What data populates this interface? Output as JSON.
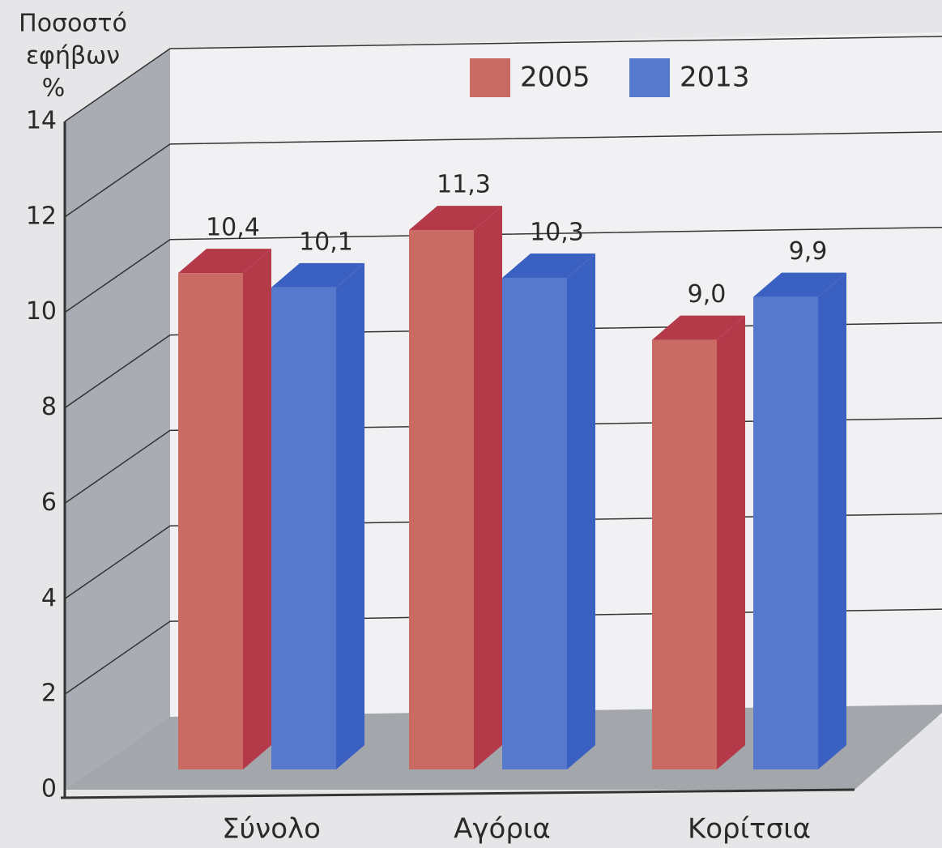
{
  "chart_data": {
    "type": "bar3d",
    "y_label_lines": [
      "Ποσοστό",
      "εφήβων",
      "%"
    ],
    "categories": [
      "Σύνολο",
      "Αγόρια",
      "Κορίτσια"
    ],
    "series": [
      {
        "name": "2005",
        "color": "#c96a63",
        "side_color": "#b43a4a",
        "values": [
          10.4,
          11.3,
          9.0
        ],
        "value_labels": [
          "10,4",
          "11,3",
          "9,0"
        ]
      },
      {
        "name": "2013",
        "color": "#5679cc",
        "side_color": "#3a60c2",
        "values": [
          10.1,
          10.3,
          9.9
        ],
        "value_labels": [
          "10,1",
          "10,3",
          "9,9"
        ]
      }
    ],
    "ylim": [
      0,
      14
    ],
    "yticks": [
      0,
      2,
      4,
      6,
      8,
      10,
      12,
      14
    ],
    "grid": true,
    "legend": "top-right"
  }
}
